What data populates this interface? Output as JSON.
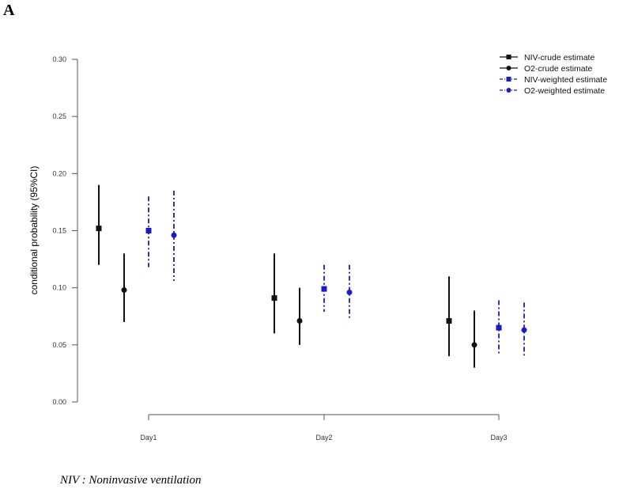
{
  "panel_label": "A",
  "footnote": "NIV : Noninvasive ventilation",
  "colors": {
    "crude": "#111111",
    "weighted": "#1a1acc",
    "axis": "#555555"
  },
  "chart_data": {
    "type": "errorbar",
    "title": "",
    "xlabel": "",
    "ylabel": "conditional probability (95%CI)",
    "ylim": [
      0.0,
      0.3
    ],
    "yticks": [
      0.0,
      0.05,
      0.1,
      0.15,
      0.2,
      0.25,
      0.3
    ],
    "ytick_labels": [
      "0.00",
      "0.05",
      "0.10",
      "0.15",
      "0.20",
      "0.25",
      "0.30"
    ],
    "categories": [
      "Day1",
      "Day2",
      "Day3"
    ],
    "grid": false,
    "legend_position": "top-right",
    "series": [
      {
        "name": "NIV-crude estimate",
        "marker": "square",
        "color": "#111111",
        "line": "solid",
        "values": [
          0.152,
          0.091,
          0.071
        ],
        "lower": [
          0.12,
          0.06,
          0.04
        ],
        "upper": [
          0.19,
          0.13,
          0.11
        ]
      },
      {
        "name": "O2-crude estimate",
        "marker": "circle",
        "color": "#111111",
        "line": "solid",
        "values": [
          0.098,
          0.071,
          0.05
        ],
        "lower": [
          0.07,
          0.05,
          0.03
        ],
        "upper": [
          0.13,
          0.1,
          0.08
        ]
      },
      {
        "name": "NIV-weighted estimate",
        "marker": "square",
        "color": "#1a1acc",
        "line": "dashdot",
        "values": [
          0.15,
          0.099,
          0.065
        ],
        "lower": [
          0.118,
          0.079,
          0.041
        ],
        "upper": [
          0.18,
          0.12,
          0.089
        ]
      },
      {
        "name": "O2-weighted estimate",
        "marker": "circle",
        "color": "#1a1acc",
        "line": "dashdot",
        "values": [
          0.146,
          0.096,
          0.063
        ],
        "lower": [
          0.106,
          0.072,
          0.039
        ],
        "upper": [
          0.185,
          0.12,
          0.087
        ]
      }
    ]
  }
}
